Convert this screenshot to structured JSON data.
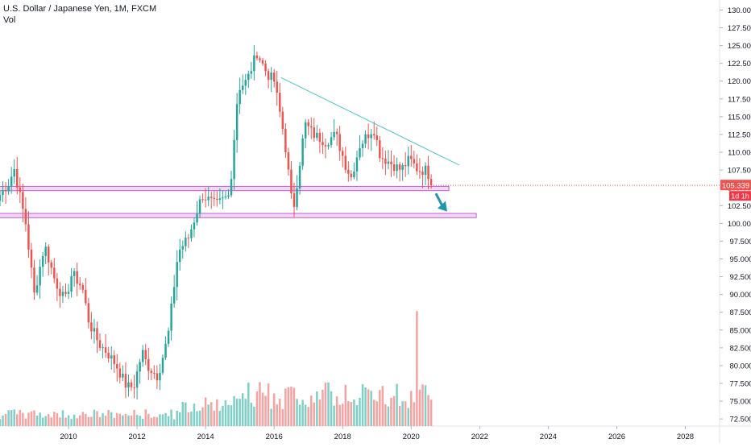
{
  "header": {
    "title": "U.S. Dollar / Japanese Yen, 1M, FXCM",
    "volume_label": "Vol"
  },
  "price_tag": {
    "value": "105.339",
    "countdown": "1d 1h"
  },
  "colors": {
    "up": "#26a69a",
    "down": "#ef5350",
    "up_volume": "#7fcfc6",
    "down_volume": "#f4a3a1",
    "trendline": "#4fc3c3",
    "zone_stroke": "#c060d0",
    "zone_fill": "#e7b6ef",
    "arrow": "#2196a8",
    "price_line": "#ef5350",
    "axis_text": "#131722"
  },
  "chart_data": {
    "type": "candlestick",
    "symbol": "U.S. Dollar / Japanese Yen",
    "interval": "1M",
    "source": "FXCM",
    "y_axis": {
      "position": "right",
      "range": [
        71.5,
        130.5
      ],
      "ticks": [
        "72.500",
        "75.000",
        "77.500",
        "80.000",
        "82.500",
        "85.000",
        "87.500",
        "90.000",
        "92.500",
        "95.000",
        "97.500",
        "100.000",
        "102.500",
        "105.000",
        "107.500",
        "110.000",
        "112.500",
        "115.000",
        "117.500",
        "120.000",
        "122.500",
        "125.000",
        "127.500",
        "130.000"
      ]
    },
    "x_axis": {
      "range_years": [
        2008.0,
        2029.0
      ],
      "ticks": [
        "2010",
        "2012",
        "2014",
        "2016",
        "2018",
        "2020",
        "2022",
        "2024",
        "2026",
        "2028"
      ]
    },
    "current_price": 105.339,
    "price_anchors": [
      [
        2008.0,
        104.0
      ],
      [
        2008.3,
        106.0
      ],
      [
        2008.4,
        108.0
      ],
      [
        2008.75,
        100.0
      ],
      [
        2009.0,
        90.0
      ],
      [
        2009.3,
        97.0
      ],
      [
        2009.6,
        92.0
      ],
      [
        2009.9,
        89.0
      ],
      [
        2010.1,
        93.0
      ],
      [
        2010.4,
        91.0
      ],
      [
        2010.6,
        86.0
      ],
      [
        2010.9,
        83.0
      ],
      [
        2011.1,
        82.0
      ],
      [
        2011.4,
        80.0
      ],
      [
        2011.7,
        77.0
      ],
      [
        2011.9,
        77.0
      ],
      [
        2012.15,
        82.0
      ],
      [
        2012.3,
        80.0
      ],
      [
        2012.6,
        78.5
      ],
      [
        2012.9,
        84.0
      ],
      [
        2013.2,
        96.0
      ],
      [
        2013.5,
        98.0
      ],
      [
        2013.9,
        104.0
      ],
      [
        2014.3,
        102.5
      ],
      [
        2014.7,
        104.0
      ],
      [
        2014.95,
        119.0
      ],
      [
        2015.2,
        120.0
      ],
      [
        2015.5,
        124.0
      ],
      [
        2015.8,
        121.0
      ],
      [
        2016.0,
        120.0
      ],
      [
        2016.3,
        112.0
      ],
      [
        2016.55,
        101.5
      ],
      [
        2016.9,
        114.0
      ],
      [
        2017.15,
        112.5
      ],
      [
        2017.5,
        111.5
      ],
      [
        2017.8,
        112.5
      ],
      [
        2018.1,
        108.0
      ],
      [
        2018.25,
        106.5
      ],
      [
        2018.5,
        111.0
      ],
      [
        2018.9,
        113.5
      ],
      [
        2019.1,
        109.5
      ],
      [
        2019.4,
        108.5
      ],
      [
        2019.7,
        107.5
      ],
      [
        2019.95,
        109.0
      ],
      [
        2020.2,
        107.5
      ],
      [
        2020.45,
        107.5
      ],
      [
        2020.58,
        106.0
      ],
      [
        2020.65,
        105.3
      ]
    ],
    "volume": {
      "scale_max": 1.0,
      "spike_year": 2020.2,
      "spike_level": 0.34
    },
    "annotations": {
      "trendline": {
        "from": [
          2016.2,
          120.5
        ],
        "to": [
          2021.4,
          108.2
        ]
      },
      "zones": [
        {
          "from_year": 2007.9,
          "to_year": 2021.1,
          "low": 104.6,
          "high": 105.2
        },
        {
          "from_year": 2007.9,
          "to_year": 2021.9,
          "low": 100.8,
          "high": 101.4
        }
      ],
      "arrow": {
        "from": [
          2020.72,
          104.2
        ],
        "to": [
          2020.98,
          102.0
        ]
      },
      "price_line": 105.339
    }
  }
}
